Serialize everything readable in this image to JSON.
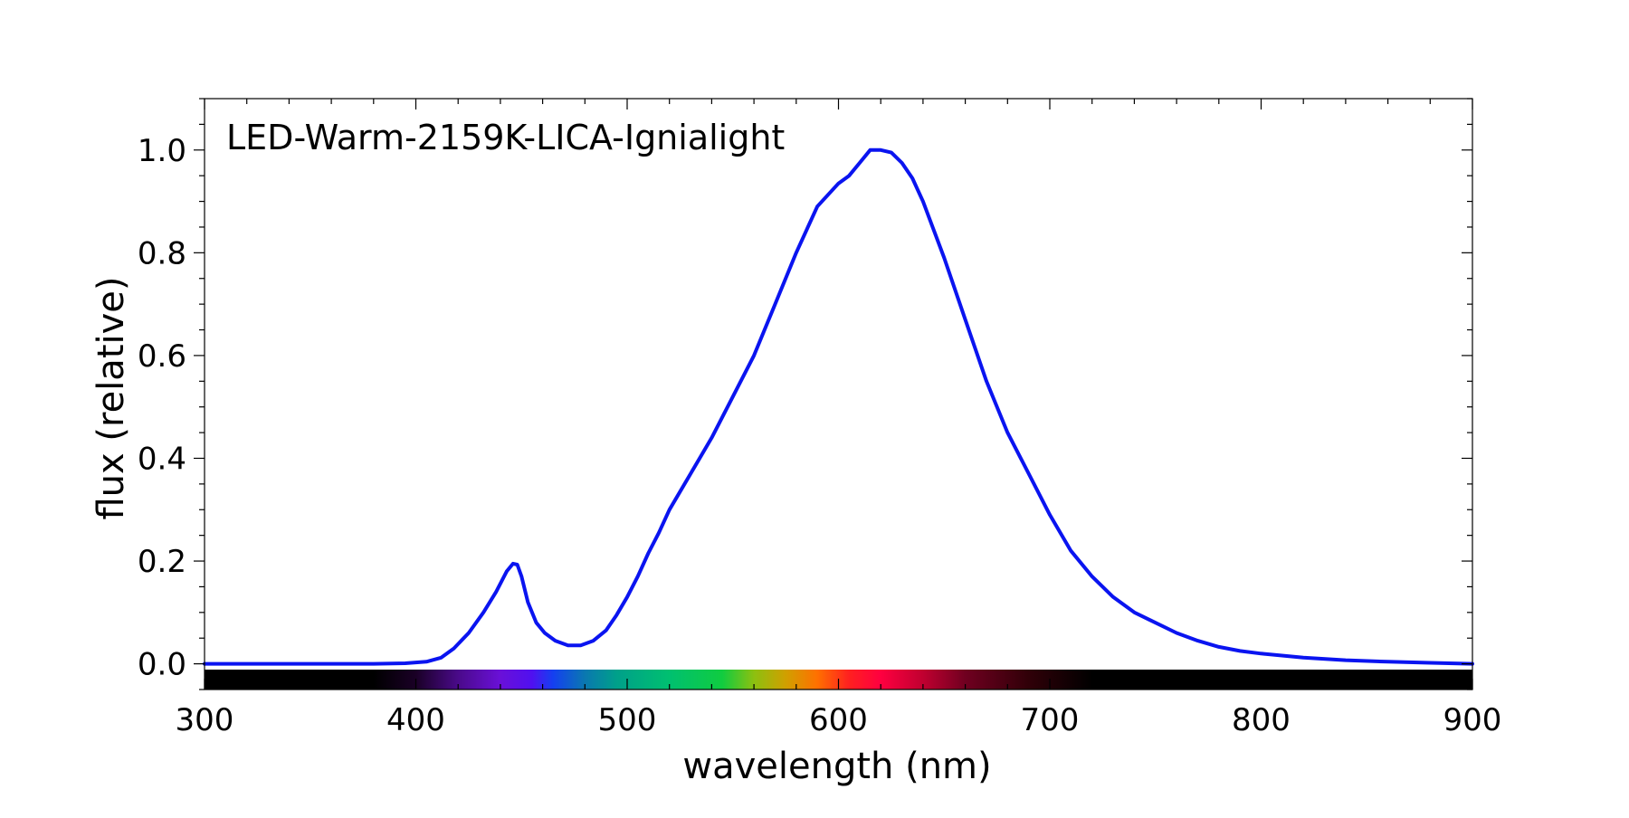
{
  "chart_data": {
    "type": "line",
    "title": "LED-Warm-2159K-LICA-Ignialight",
    "xlabel": "wavelength (nm)",
    "ylabel": "flux (relative)",
    "xlim": [
      300,
      900
    ],
    "ylim": [
      -0.05,
      1.1
    ],
    "x_ticks": [
      300,
      400,
      500,
      600,
      700,
      800,
      900
    ],
    "y_ticks": [
      0.0,
      0.2,
      0.4,
      0.6,
      0.8,
      1.0
    ],
    "x_tick_labels": [
      "300",
      "400",
      "500",
      "600",
      "700",
      "800",
      "900"
    ],
    "y_tick_labels": [
      "0.0",
      "0.2",
      "0.4",
      "0.6",
      "0.8",
      "1.0"
    ],
    "grid": false,
    "legend": "none",
    "colors": {
      "line": "#0a14f0",
      "frame": "#000000"
    },
    "spectrum_band_stops": [
      {
        "nm": 300,
        "color": "#000000"
      },
      {
        "nm": 380,
        "color": "#000000"
      },
      {
        "nm": 400,
        "color": "#1a0026"
      },
      {
        "nm": 420,
        "color": "#4a0a8a"
      },
      {
        "nm": 440,
        "color": "#6a10d8"
      },
      {
        "nm": 455,
        "color": "#5010f0"
      },
      {
        "nm": 465,
        "color": "#1440f0"
      },
      {
        "nm": 480,
        "color": "#0a78b0"
      },
      {
        "nm": 495,
        "color": "#00a08a"
      },
      {
        "nm": 520,
        "color": "#00c070"
      },
      {
        "nm": 545,
        "color": "#10cc40"
      },
      {
        "nm": 560,
        "color": "#8cc010"
      },
      {
        "nm": 575,
        "color": "#d0a000"
      },
      {
        "nm": 590,
        "color": "#ff7000"
      },
      {
        "nm": 605,
        "color": "#ff2020"
      },
      {
        "nm": 620,
        "color": "#ff0040"
      },
      {
        "nm": 640,
        "color": "#c00030"
      },
      {
        "nm": 660,
        "color": "#700020"
      },
      {
        "nm": 690,
        "color": "#300008"
      },
      {
        "nm": 720,
        "color": "#000000"
      },
      {
        "nm": 900,
        "color": "#000000"
      }
    ],
    "series": [
      {
        "x": [
          300,
          320,
          340,
          360,
          380,
          395,
          405,
          412,
          418,
          425,
          432,
          438,
          443,
          446,
          448,
          450,
          453,
          457,
          461,
          466,
          472,
          478,
          484,
          490,
          495,
          500,
          505,
          510,
          515,
          520,
          530,
          540,
          550,
          560,
          570,
          580,
          590,
          600,
          605,
          610,
          615,
          620,
          625,
          630,
          635,
          640,
          645,
          650,
          660,
          670,
          680,
          690,
          700,
          710,
          720,
          730,
          740,
          750,
          760,
          770,
          780,
          790,
          800,
          820,
          840,
          860,
          880,
          900
        ],
        "y": [
          0.0,
          0.0,
          0.0,
          0.0,
          0.0,
          0.001,
          0.004,
          0.012,
          0.03,
          0.06,
          0.1,
          0.14,
          0.18,
          0.195,
          0.193,
          0.17,
          0.12,
          0.08,
          0.06,
          0.045,
          0.036,
          0.036,
          0.045,
          0.065,
          0.095,
          0.13,
          0.17,
          0.215,
          0.255,
          0.3,
          0.37,
          0.44,
          0.52,
          0.6,
          0.7,
          0.8,
          0.89,
          0.935,
          0.95,
          0.975,
          1.0,
          1.0,
          0.995,
          0.975,
          0.945,
          0.9,
          0.845,
          0.79,
          0.67,
          0.55,
          0.45,
          0.37,
          0.29,
          0.22,
          0.17,
          0.13,
          0.1,
          0.08,
          0.06,
          0.045,
          0.033,
          0.025,
          0.02,
          0.012,
          0.007,
          0.004,
          0.002,
          0.0
        ]
      }
    ]
  }
}
